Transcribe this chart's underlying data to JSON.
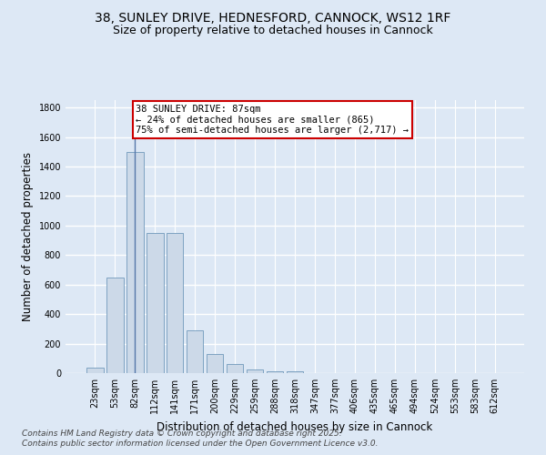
{
  "title_line1": "38, SUNLEY DRIVE, HEDNESFORD, CANNOCK, WS12 1RF",
  "title_line2": "Size of property relative to detached houses in Cannock",
  "xlabel": "Distribution of detached houses by size in Cannock",
  "ylabel": "Number of detached properties",
  "categories": [
    "23sqm",
    "53sqm",
    "82sqm",
    "112sqm",
    "141sqm",
    "171sqm",
    "200sqm",
    "229sqm",
    "259sqm",
    "288sqm",
    "318sqm",
    "347sqm",
    "377sqm",
    "406sqm",
    "435sqm",
    "465sqm",
    "494sqm",
    "524sqm",
    "553sqm",
    "583sqm",
    "612sqm"
  ],
  "values": [
    40,
    650,
    1500,
    950,
    950,
    290,
    130,
    60,
    25,
    10,
    10,
    0,
    0,
    0,
    0,
    0,
    0,
    0,
    0,
    0,
    0
  ],
  "bar_color": "#ccd9e8",
  "bar_edge_color": "#7099bb",
  "vline_x": 2,
  "vline_color": "#5577aa",
  "annotation_text": "38 SUNLEY DRIVE: 87sqm\n← 24% of detached houses are smaller (865)\n75% of semi-detached houses are larger (2,717) →",
  "annotation_box_color": "white",
  "annotation_box_edge_color": "#cc0000",
  "ylim": [
    0,
    1850
  ],
  "yticks": [
    0,
    200,
    400,
    600,
    800,
    1000,
    1200,
    1400,
    1600,
    1800
  ],
  "background_color": "#dde8f5",
  "grid_color": "white",
  "footer_line1": "Contains HM Land Registry data © Crown copyright and database right 2025.",
  "footer_line2": "Contains public sector information licensed under the Open Government Licence v3.0.",
  "title_fontsize": 10,
  "subtitle_fontsize": 9,
  "axis_label_fontsize": 8.5,
  "tick_fontsize": 7,
  "annotation_fontsize": 7.5,
  "footer_fontsize": 6.5
}
